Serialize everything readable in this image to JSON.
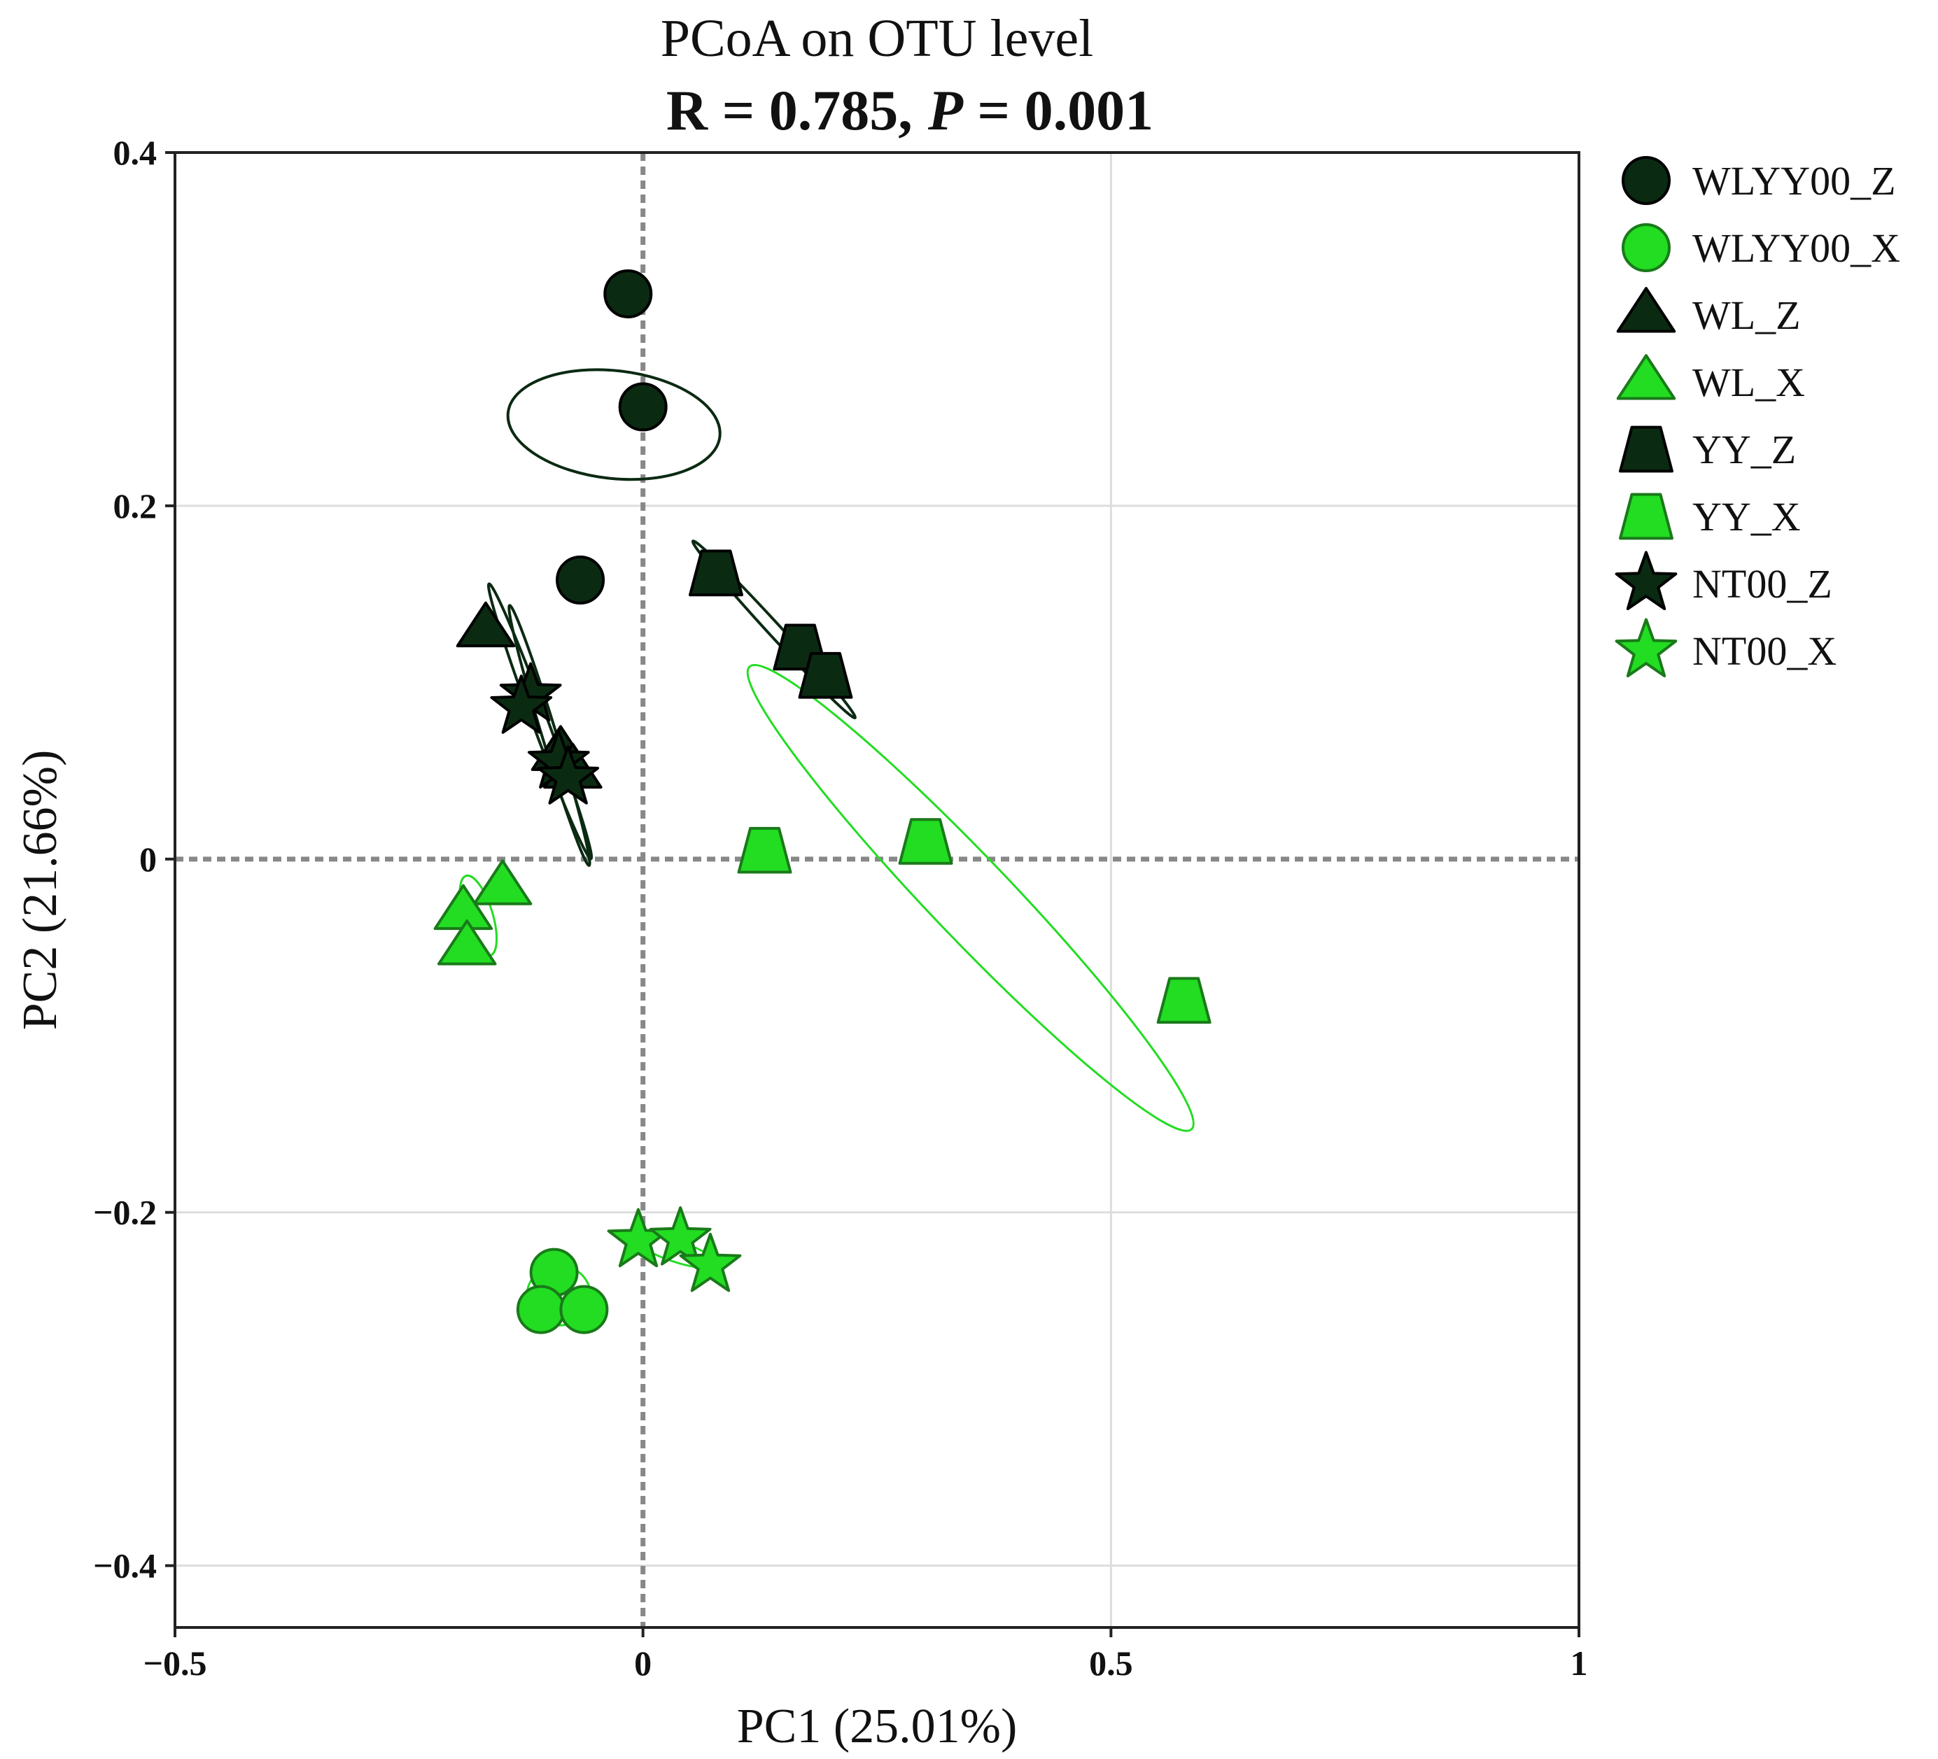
{
  "chart_data": {
    "type": "scatter",
    "title": "PCoA on OTU level",
    "subtitle": {
      "r_text": "R = 0.785,",
      "p_symbol": "P",
      "p_text": " = 0.001"
    },
    "xlabel": "PC1 (25.01%)",
    "ylabel": "PC2 (21.66%)",
    "xlim": [
      -0.5,
      1.0
    ],
    "ylim": [
      -0.435,
      0.4
    ],
    "x_ticks": [
      {
        "value": -0.5,
        "label": "−0.5"
      },
      {
        "value": 0,
        "label": "0"
      },
      {
        "value": 0.5,
        "label": "0.5"
      },
      {
        "value": 1,
        "label": "1"
      }
    ],
    "y_ticks": [
      {
        "value": 0.4,
        "label": "0.4"
      },
      {
        "value": 0.2,
        "label": "0.2"
      },
      {
        "value": 0,
        "label": "0"
      },
      {
        "value": -0.2,
        "label": "−0.2"
      },
      {
        "value": -0.4,
        "label": "−0.4"
      }
    ],
    "grid": true,
    "zero_reference_lines": true,
    "legend_position": "right",
    "colors": {
      "dark": "#0b2a12",
      "light": "#22dd22",
      "light_stroke": "#1a7a1a",
      "grid": "#dddddd",
      "zero_line": "#888888"
    },
    "series": [
      {
        "name": "WLYY00_Z",
        "marker": "circle",
        "color": "dark",
        "points": [
          [
            -0.016,
            0.32
          ],
          [
            0.0,
            0.256
          ],
          [
            -0.067,
            0.158
          ]
        ]
      },
      {
        "name": "WLYY00_X",
        "marker": "circle",
        "color": "light",
        "points": [
          [
            -0.095,
            -0.234
          ],
          [
            -0.109,
            -0.255
          ],
          [
            -0.063,
            -0.255
          ]
        ]
      },
      {
        "name": "WL_Z",
        "marker": "triangle",
        "color": "dark",
        "points": [
          [
            -0.168,
            0.13
          ],
          [
            -0.088,
            0.06
          ],
          [
            -0.075,
            0.05
          ]
        ]
      },
      {
        "name": "WL_X",
        "marker": "triangle",
        "color": "light",
        "points": [
          [
            -0.15,
            -0.016
          ],
          [
            -0.192,
            -0.03
          ],
          [
            -0.188,
            -0.05
          ]
        ]
      },
      {
        "name": "YY_Z",
        "marker": "trapezoid",
        "color": "dark",
        "points": [
          [
            0.078,
            0.162
          ],
          [
            0.168,
            0.12
          ],
          [
            0.195,
            0.104
          ]
        ]
      },
      {
        "name": "YY_X",
        "marker": "trapezoid",
        "color": "light",
        "points": [
          [
            0.13,
            0.005
          ],
          [
            0.302,
            0.01
          ],
          [
            0.578,
            -0.08
          ]
        ]
      },
      {
        "name": "NT00_Z",
        "marker": "star",
        "color": "dark",
        "points": [
          [
            -0.12,
            0.093
          ],
          [
            -0.13,
            0.086
          ],
          [
            -0.09,
            0.055
          ],
          [
            -0.08,
            0.046
          ]
        ]
      },
      {
        "name": "NT00_X",
        "marker": "star",
        "color": "light",
        "points": [
          [
            -0.005,
            -0.216
          ],
          [
            0.04,
            -0.215
          ],
          [
            0.072,
            -0.23
          ]
        ]
      }
    ],
    "ellipses": [
      {
        "series": "WLYY00_Z",
        "color": "dark",
        "center": [
          -0.031,
          0.246
        ],
        "rx": 0.031,
        "ry": 0.108,
        "angle_deg": 78
      },
      {
        "series": "WLYY00_X",
        "color": "light",
        "center": [
          -0.09,
          -0.247
        ],
        "rx": 0.034,
        "ry": 0.017,
        "angle_deg": 0
      },
      {
        "series": "WL_Z",
        "color": "dark",
        "center": [
          -0.11,
          0.078
        ],
        "rx": 0.095,
        "ry": 0.006,
        "angle_deg": -55
      },
      {
        "series": "WL_X",
        "color": "light",
        "center": [
          -0.176,
          -0.032
        ],
        "rx": 0.026,
        "ry": 0.012,
        "angle_deg": -60
      },
      {
        "series": "YY_Z",
        "color": "dark",
        "center": [
          0.14,
          0.13
        ],
        "rx": 0.1,
        "ry": 0.004,
        "angle_deg": -30
      },
      {
        "series": "YY_X",
        "color": "light",
        "center": [
          0.35,
          -0.022
        ],
        "rx": 0.27,
        "ry": 0.025,
        "angle_deg": -29
      },
      {
        "series": "NT00_Z",
        "color": "dark",
        "center": [
          -0.1,
          0.07
        ],
        "rx": 0.085,
        "ry": 0.006,
        "angle_deg": -60
      },
      {
        "series": "NT00_X",
        "color": "light",
        "center": [
          0.035,
          -0.222
        ],
        "rx": 0.045,
        "ry": 0.006,
        "angle_deg": -10
      }
    ]
  }
}
